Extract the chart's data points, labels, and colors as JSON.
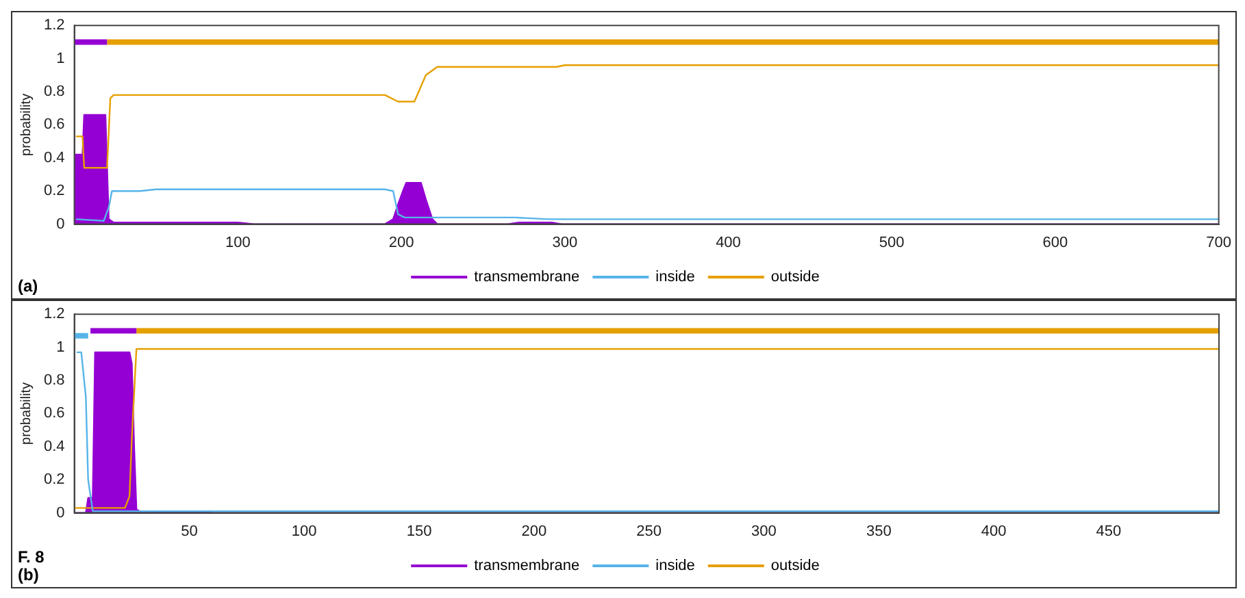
{
  "chart_data": [
    {
      "type": "line",
      "ylabel": "probability",
      "xlim": [
        0,
        700
      ],
      "xticks": [
        100,
        200,
        300,
        400,
        500,
        600,
        700
      ],
      "ylim": [
        0,
        1.2
      ],
      "yticks": [
        0,
        0.2,
        0.4,
        0.6,
        0.8,
        1,
        1.2
      ],
      "legend": "bottom",
      "grid": false,
      "annotations": [
        "(a)"
      ],
      "series": [
        {
          "name": "transmembrane",
          "type": "area",
          "color": "#9400d3",
          "x": [
            0,
            1,
            5,
            6,
            19,
            21,
            24,
            100,
            110,
            190,
            195,
            198,
            201,
            203,
            212,
            215,
            219,
            222,
            265,
            272,
            292,
            298,
            700
          ],
          "values": [
            0,
            0.42,
            0.42,
            0.66,
            0.66,
            0.03,
            0.01,
            0.01,
            0,
            0,
            0.03,
            0.12,
            0.2,
            0.25,
            0.25,
            0.15,
            0.03,
            0,
            0,
            0.01,
            0.01,
            0,
            0
          ]
        },
        {
          "name": "inside",
          "color": "#56b4e9",
          "x": [
            1,
            18,
            21,
            23,
            40,
            50,
            190,
            195,
            198,
            202,
            270,
            290,
            700
          ],
          "values": [
            0.03,
            0.02,
            0.1,
            0.2,
            0.2,
            0.21,
            0.21,
            0.2,
            0.06,
            0.04,
            0.04,
            0.03,
            0.03
          ]
        },
        {
          "name": "outside",
          "color": "#e69f00",
          "x": [
            1,
            5,
            6,
            20,
            22,
            24,
            190,
            198,
            208,
            215,
            222,
            295,
            300,
            700
          ],
          "values": [
            0.53,
            0.53,
            0.34,
            0.34,
            0.76,
            0.78,
            0.78,
            0.74,
            0.74,
            0.9,
            0.95,
            0.95,
            0.96,
            0.96
          ]
        },
        {
          "color": "#9400d3",
          "x": [
            0,
            20
          ],
          "values": [
            1.1,
            1.1
          ]
        },
        {
          "color": "#e69f00",
          "x": [
            20,
            700
          ],
          "values": [
            1.1,
            1.1
          ]
        }
      ]
    },
    {
      "type": "line",
      "ylabel": "probability",
      "xlim": [
        0,
        498
      ],
      "xticks": [
        50,
        100,
        150,
        200,
        250,
        300,
        350,
        400,
        450
      ],
      "ylim": [
        0,
        1.2
      ],
      "yticks": [
        0,
        0.2,
        0.4,
        0.6,
        0.8,
        1,
        1.2
      ],
      "legend": "bottom",
      "grid": false,
      "annotations": [
        "F. 8",
        "(b)"
      ],
      "series": [
        {
          "name": "transmembrane",
          "type": "area",
          "color": "#9400d3",
          "x": [
            0,
            5,
            6,
            8,
            9,
            24,
            25,
            26,
            27,
            30,
            35,
            55,
            60,
            498
          ],
          "values": [
            0,
            0,
            0.09,
            0.09,
            0.97,
            0.97,
            0.9,
            0.4,
            0.02,
            0,
            0.01,
            0.01,
            0,
            0
          ]
        },
        {
          "name": "inside",
          "color": "#56b4e9",
          "x": [
            1,
            3,
            5,
            6,
            8,
            498
          ],
          "values": [
            0.97,
            0.97,
            0.7,
            0.2,
            0.01,
            0.01
          ]
        },
        {
          "name": "outside",
          "color": "#e69f00",
          "x": [
            0,
            22,
            24,
            25,
            27,
            498
          ],
          "values": [
            0.03,
            0.03,
            0.1,
            0.45,
            0.99,
            0.99
          ]
        },
        {
          "color": "#56b4e9",
          "x": [
            0,
            6
          ],
          "values": [
            1.07,
            1.07
          ]
        },
        {
          "color": "#9400d3",
          "x": [
            7,
            27
          ],
          "values": [
            1.1,
            1.1
          ]
        },
        {
          "color": "#e69f00",
          "x": [
            27,
            498
          ],
          "values": [
            1.1,
            1.1
          ]
        }
      ]
    }
  ]
}
